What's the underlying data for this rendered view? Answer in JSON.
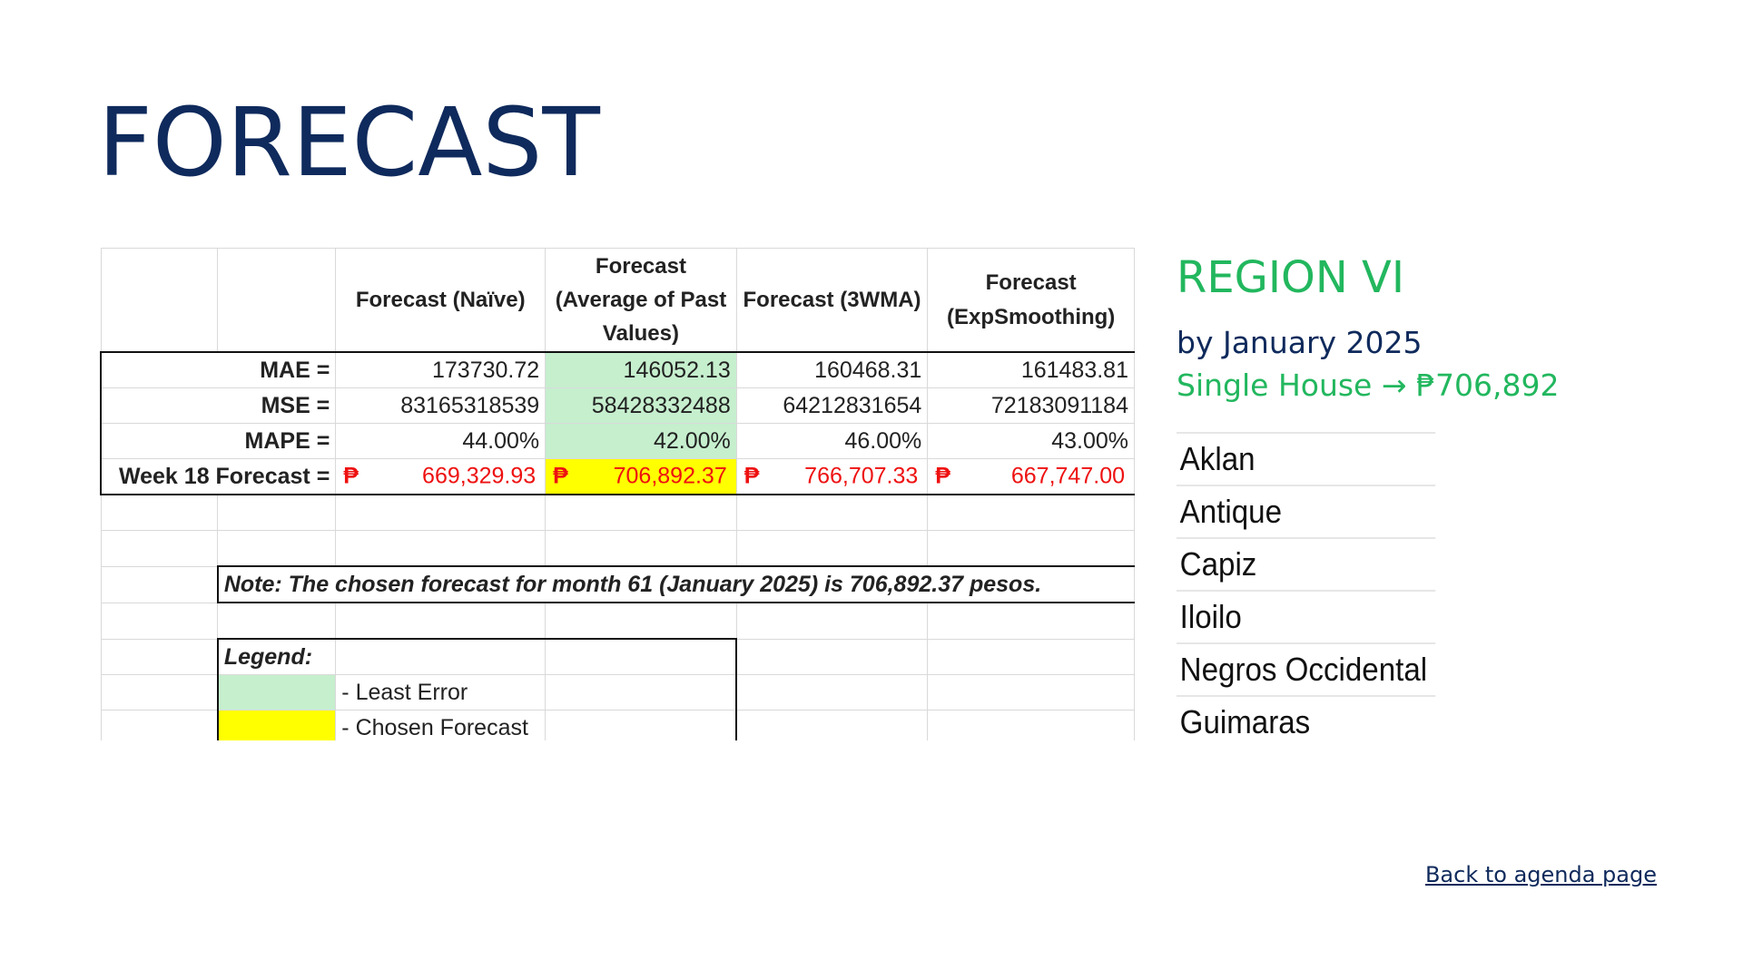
{
  "page": {
    "title": "FORECAST",
    "back_link": "Back to agenda page"
  },
  "sheet": {
    "headers": [
      "Forecast (Naïve)",
      "Forecast (Average of Past Values)",
      "Forecast (3WMA)",
      "Forecast (ExpSmoothing)"
    ],
    "rows": [
      {
        "label": "MAE =",
        "values": [
          "173730.72",
          "146052.13",
          "160468.31",
          "161483.81"
        ]
      },
      {
        "label": "MSE =",
        "values": [
          "83165318539",
          "58428332488",
          "64212831654",
          "72183091184"
        ]
      },
      {
        "label": "MAPE =",
        "values": [
          "44.00%",
          "42.00%",
          "46.00%",
          "43.00%"
        ]
      }
    ],
    "forecast_row": {
      "label": "Week 18 Forecast =",
      "currency": "₱",
      "values": [
        "669,329.93",
        "706,892.37",
        "766,707.33",
        "667,747.00"
      ]
    },
    "note": "Note: The chosen forecast for month 61 (January 2025) is 706,892.37 pesos.",
    "legend": {
      "title": "Legend:",
      "items": [
        {
          "label": "- Least Error",
          "color": "#c6efce"
        },
        {
          "label": "- Chosen Forecast",
          "color": "#ffff00"
        }
      ]
    }
  },
  "side": {
    "region": "REGION VI",
    "by_date": "by January 2025",
    "single_house": "Single House → ₱706,892",
    "provinces": [
      "Aklan",
      "Antique",
      "Capiz",
      "Iloilo",
      "Negros Occidental",
      "Guimaras"
    ]
  },
  "colors": {
    "navy": "#0f2a5c",
    "green_text": "#22b75e",
    "least_error": "#c6efce",
    "chosen": "#ffff00",
    "forecast_red": "#ee1111"
  }
}
